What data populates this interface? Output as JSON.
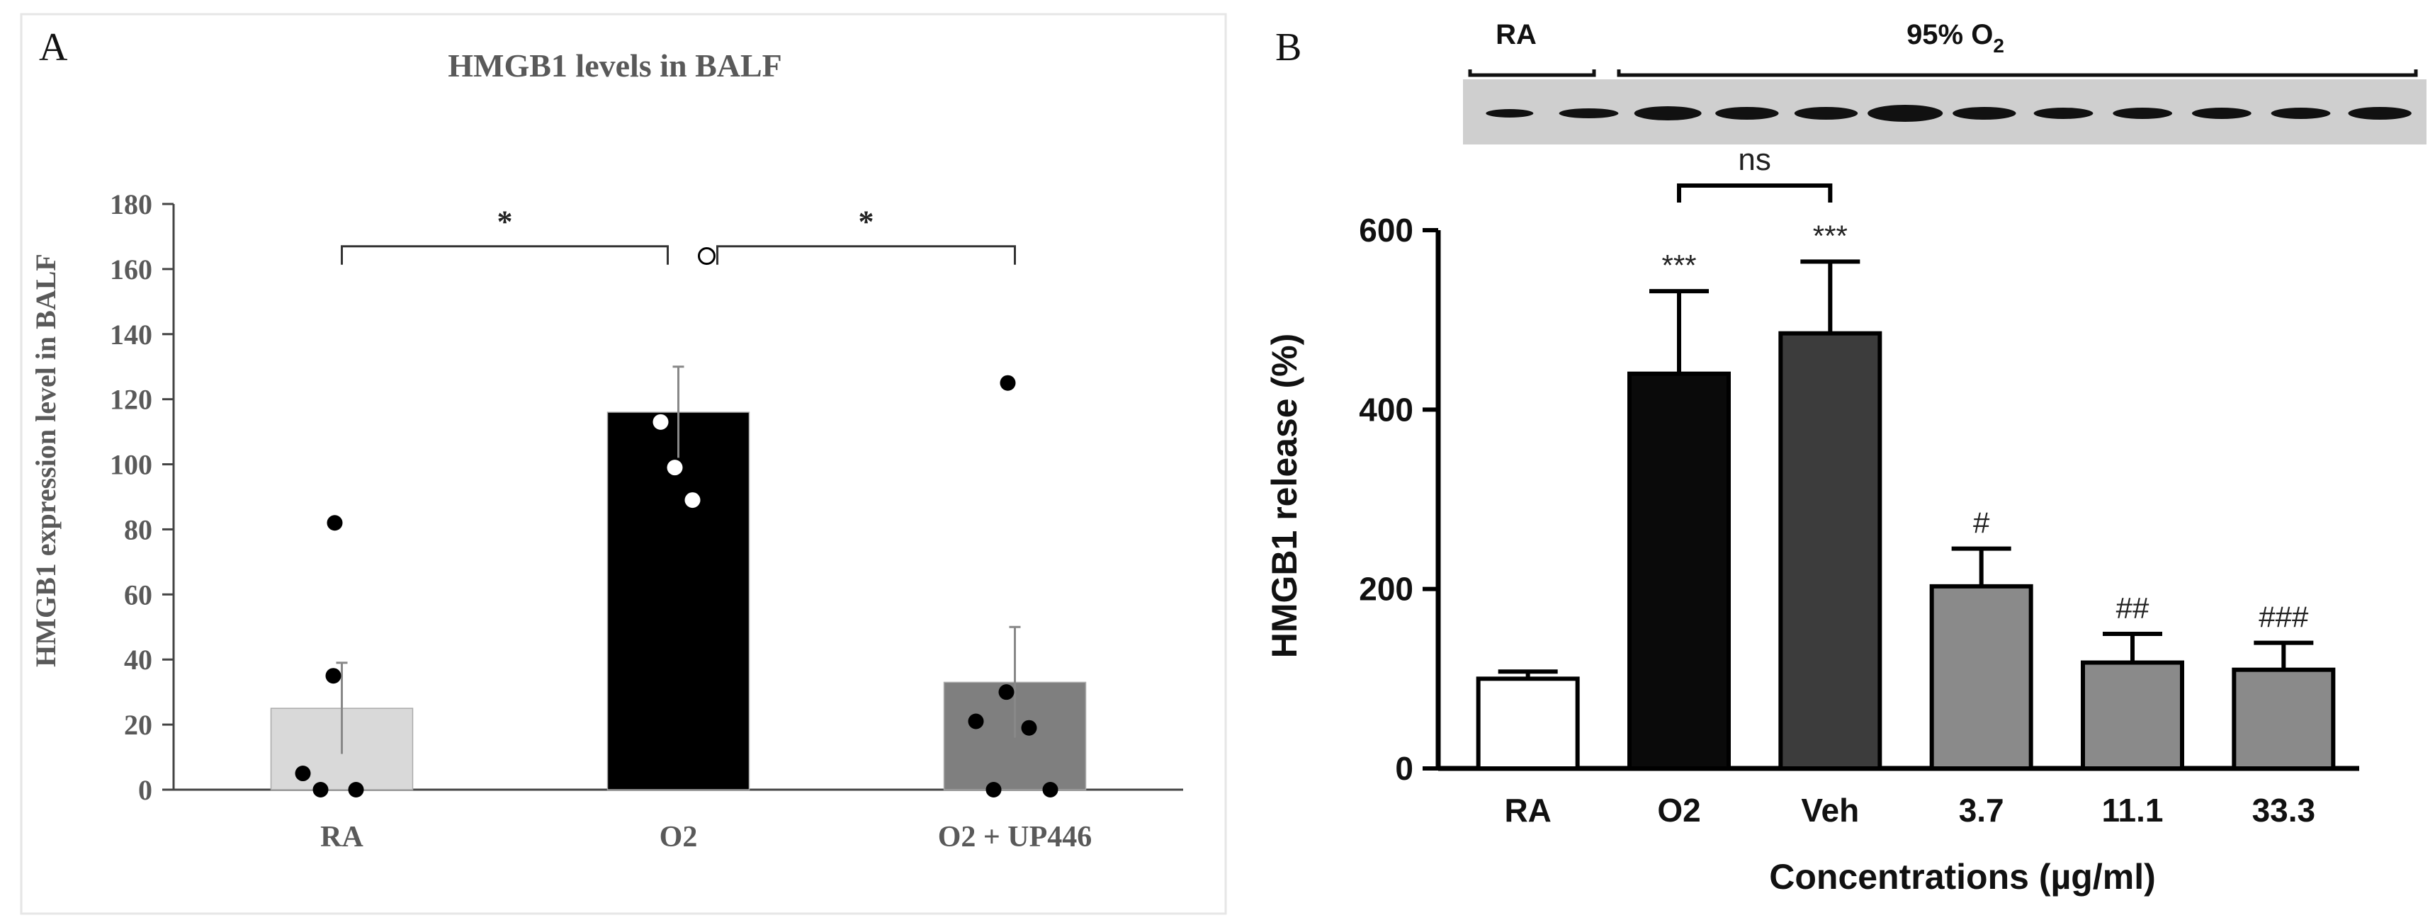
{
  "panels": {
    "a_letter": "A",
    "b_letter": "B"
  },
  "chart_data": [
    {
      "type": "bar",
      "title": "HMGB1 levels in BALF",
      "ylabel": "HMGB1 expression level in BALF",
      "xlabel": "",
      "categories": [
        "RA",
        "O2",
        "O2 + UP446"
      ],
      "values": [
        25,
        116,
        33
      ],
      "errors": [
        14,
        14,
        17
      ],
      "points": [
        [
          82,
          35,
          5,
          0,
          0
        ],
        [
          113,
          99,
          89,
          164
        ],
        [
          125,
          30,
          21,
          19,
          0,
          0
        ]
      ],
      "ylim": [
        0,
        180
      ],
      "yticks": [
        "0",
        "20",
        "40",
        "60",
        "80",
        "100",
        "120",
        "140",
        "160",
        "180"
      ],
      "significance": [
        "*",
        "*"
      ],
      "colors": [
        "#d9d9d9",
        "#000000",
        "#7f7f7f"
      ]
    },
    {
      "type": "bar",
      "title": "",
      "ylabel": "HMGB1 release (%)",
      "xlabel": "Concentrations (µg/ml)",
      "categories": [
        "RA",
        "O2",
        "Veh",
        "3.7",
        "11.1",
        "33.3"
      ],
      "values": [
        100,
        440,
        485,
        203,
        118,
        110
      ],
      "errors": [
        8,
        92,
        80,
        42,
        32,
        30
      ],
      "ylim": [
        0,
        600
      ],
      "yticks": [
        "0",
        "200",
        "400",
        "600"
      ],
      "annotations": [
        "",
        "***",
        "***",
        "#",
        "##",
        "###"
      ],
      "bracket_label": "ns",
      "colors": [
        "#ffffff",
        "#0a0a0a",
        "#3c3c3c",
        "#8a8a8a",
        "#8a8a8a",
        "#8a8a8a"
      ],
      "blot": {
        "label_ra": "RA",
        "label_o2": "95% O",
        "label_o2_sub": "2",
        "band_count": 12
      }
    }
  ]
}
